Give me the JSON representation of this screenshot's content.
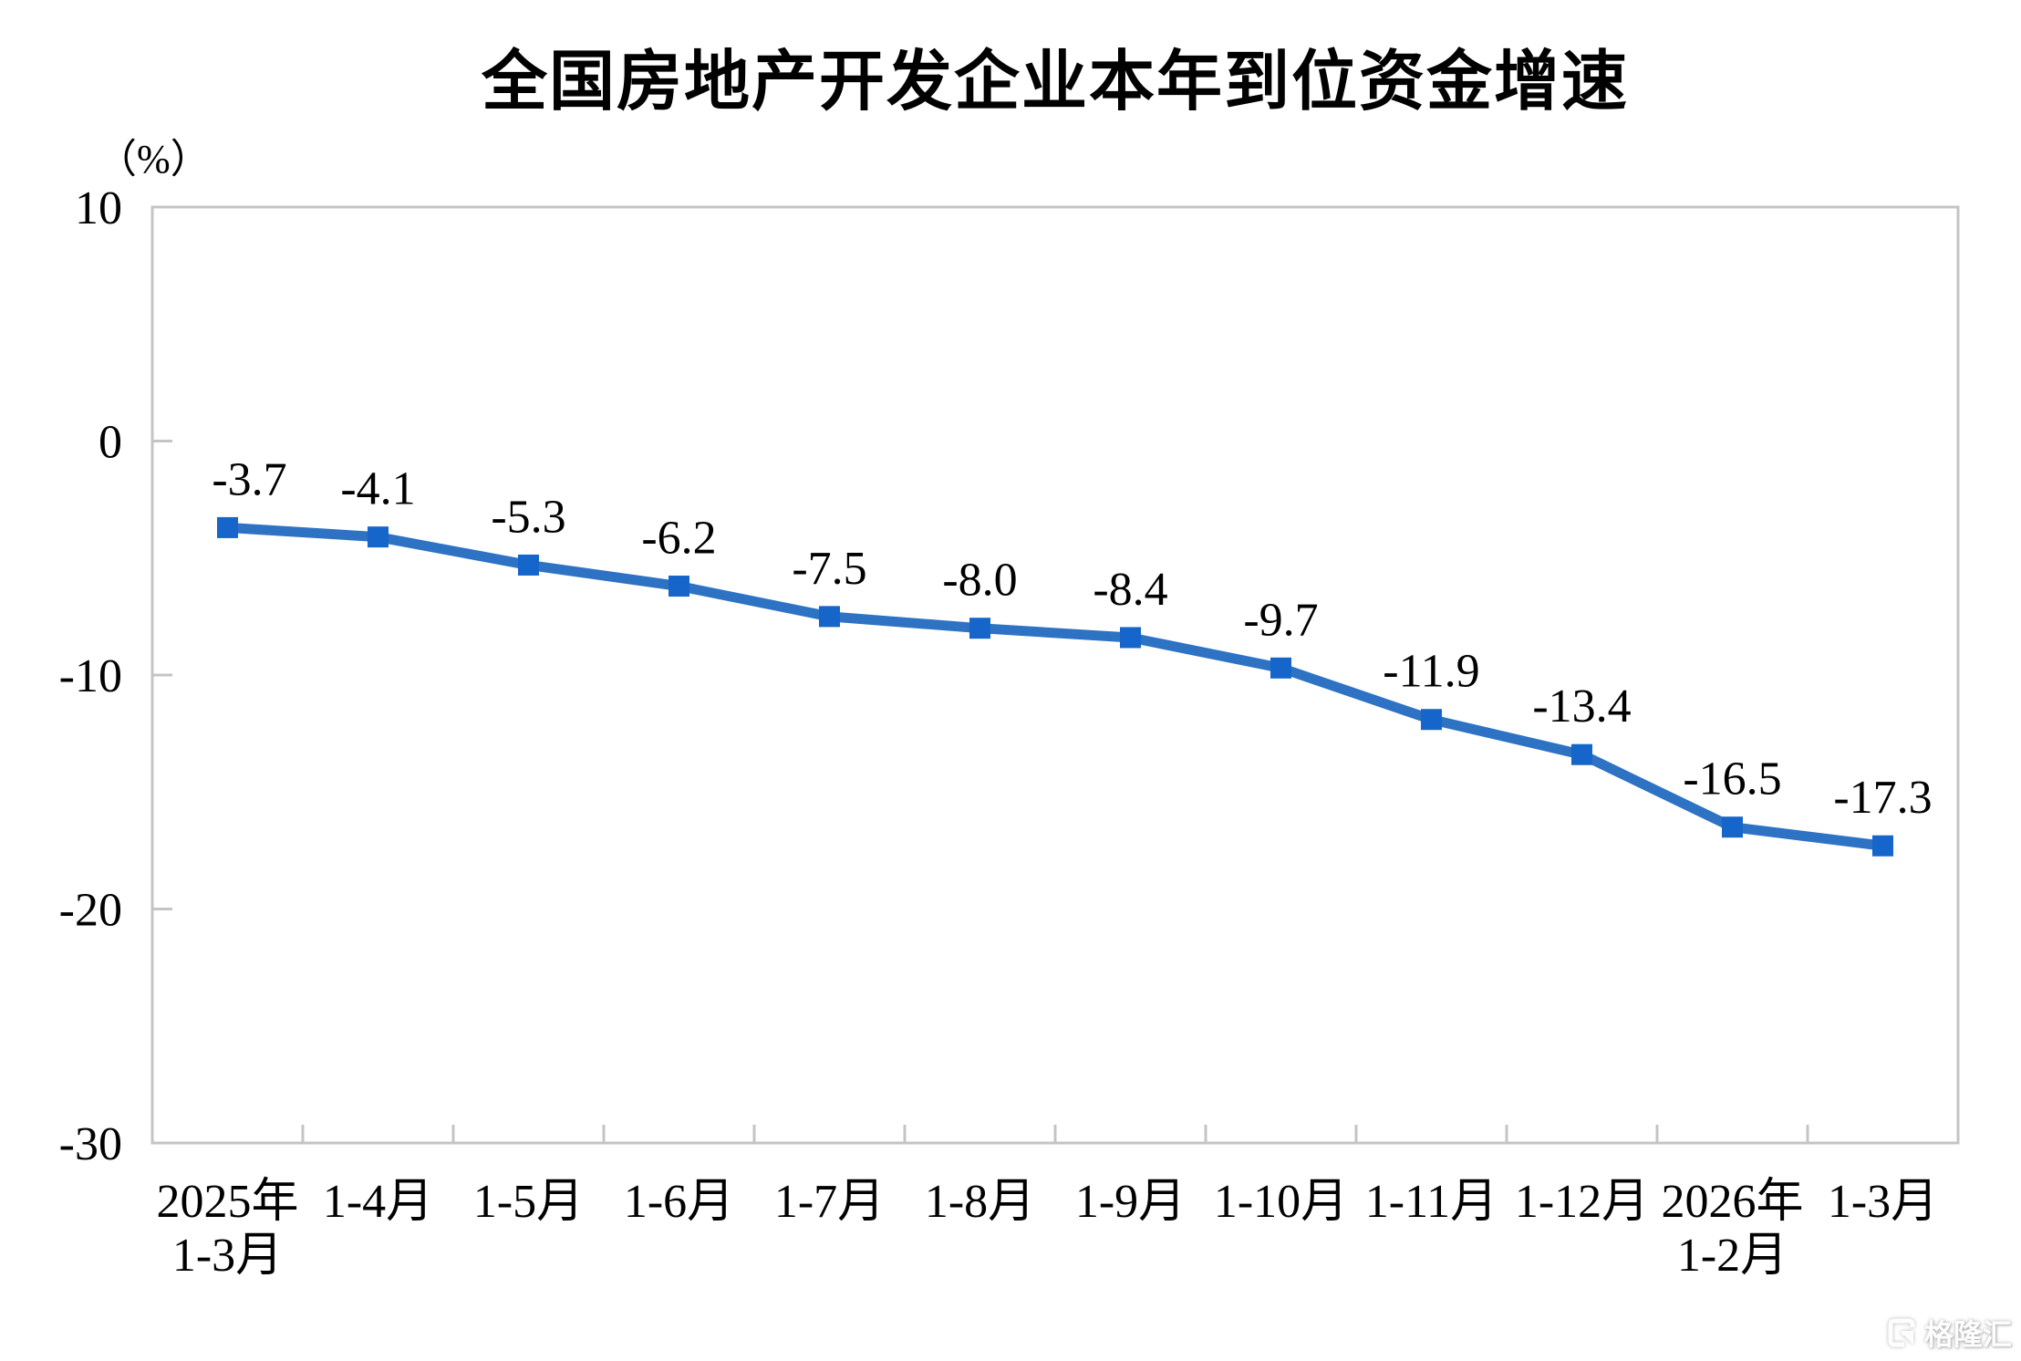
{
  "chart_data": {
    "type": "line",
    "title": "全国房地产开发企业本年到位资金增速",
    "unit_label": "（%）",
    "categories": [
      "2025年\n1-3月",
      "1-4月",
      "1-5月",
      "1-6月",
      "1-7月",
      "1-8月",
      "1-9月",
      "1-10月",
      "1-11月",
      "1-12月",
      "2026年\n1-2月",
      "1-3月"
    ],
    "values": [
      -3.7,
      -4.1,
      -5.3,
      -6.2,
      -7.5,
      -8.0,
      -8.4,
      -9.7,
      -11.9,
      -13.4,
      -16.5,
      -17.3
    ],
    "labels": [
      "-3.7",
      "-4.1",
      "-5.3",
      "-6.2",
      "-7.5",
      "-8.0",
      "-8.4",
      "-9.7",
      "-11.9",
      "-13.4",
      "-16.5",
      "-17.3"
    ],
    "y_ticks": [
      10,
      0,
      -10,
      -20,
      -30
    ],
    "ylim": [
      -30,
      10
    ],
    "grid": false,
    "legend": "none",
    "colors": {
      "line": "#2e72c4",
      "marker": "#1565cb",
      "axis": "#c4c4c4",
      "text": "#000000"
    }
  },
  "watermark": {
    "text": "格隆汇"
  }
}
